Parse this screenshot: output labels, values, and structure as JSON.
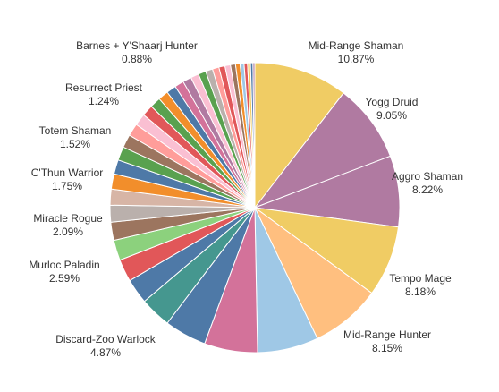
{
  "chart_data": {
    "type": "pie",
    "title": "",
    "slices": [
      {
        "label": "Mid-Range Shaman",
        "value": 10.87,
        "color": "#f0cc64",
        "labeled": true
      },
      {
        "label": "Yogg Druid",
        "value": 9.05,
        "color": "#b07aa1",
        "labeled": true
      },
      {
        "label": "Aggro Shaman",
        "value": 8.22,
        "color": "#b07aa1",
        "labeled": true
      },
      {
        "label": "Tempo Mage",
        "value": 8.18,
        "color": "#f0cc64",
        "labeled": true
      },
      {
        "label": "Mid-Range Hunter",
        "value": 8.15,
        "color": "#ffbf7f",
        "labeled": true
      },
      {
        "label": "",
        "value": 7.05,
        "color": "#9fc8e6",
        "labeled": false
      },
      {
        "label": "",
        "value": 6.15,
        "color": "#d3729a",
        "labeled": false
      },
      {
        "label": "Discard-Zoo Warlock",
        "value": 4.87,
        "color": "#4e79a7",
        "labeled": true
      },
      {
        "label": "",
        "value": 3.6,
        "color": "#45978f",
        "labeled": false
      },
      {
        "label": "",
        "value": 2.9,
        "color": "#4e79a7",
        "labeled": false
      },
      {
        "label": "Murloc Paladin",
        "value": 2.59,
        "color": "#e15759",
        "labeled": true
      },
      {
        "label": "",
        "value": 2.35,
        "color": "#8cd17d",
        "labeled": false
      },
      {
        "label": "Miracle Rogue",
        "value": 2.09,
        "color": "#9c755f",
        "labeled": true
      },
      {
        "label": "",
        "value": 1.95,
        "color": "#bab0ac",
        "labeled": false
      },
      {
        "label": "",
        "value": 1.85,
        "color": "#d7b5a6",
        "labeled": false
      },
      {
        "label": "C'Thun Warrior",
        "value": 1.75,
        "color": "#f28e2b",
        "labeled": true
      },
      {
        "label": "",
        "value": 1.65,
        "color": "#4e79a7",
        "labeled": false
      },
      {
        "label": "",
        "value": 1.58,
        "color": "#59a14f",
        "labeled": false
      },
      {
        "label": "Totem Shaman",
        "value": 1.52,
        "color": "#9c755f",
        "labeled": true
      },
      {
        "label": "",
        "value": 1.45,
        "color": "#ff9d9a",
        "labeled": false
      },
      {
        "label": "",
        "value": 1.38,
        "color": "#fabfd2",
        "labeled": false
      },
      {
        "label": "",
        "value": 1.31,
        "color": "#e15759",
        "labeled": false
      },
      {
        "label": "Resurrect Priest",
        "value": 1.24,
        "color": "#59a14f",
        "labeled": true
      },
      {
        "label": "",
        "value": 1.18,
        "color": "#f28e2b",
        "labeled": false
      },
      {
        "label": "",
        "value": 1.12,
        "color": "#4e79a7",
        "labeled": false
      },
      {
        "label": "",
        "value": 1.06,
        "color": "#d3729a",
        "labeled": false
      },
      {
        "label": "",
        "value": 1.0,
        "color": "#b07aa1",
        "labeled": false
      },
      {
        "label": "",
        "value": 0.94,
        "color": "#fabfd2",
        "labeled": false
      },
      {
        "label": "Barnes + Y'Shaarj Hunter",
        "value": 0.88,
        "color": "#59a14f",
        "labeled": true
      },
      {
        "label": "",
        "value": 0.82,
        "color": "#bab0ac",
        "labeled": false
      },
      {
        "label": "",
        "value": 0.76,
        "color": "#ff9d9a",
        "labeled": false
      },
      {
        "label": "",
        "value": 0.7,
        "color": "#e15759",
        "labeled": false
      },
      {
        "label": "",
        "value": 0.64,
        "color": "#fabfd2",
        "labeled": false
      },
      {
        "label": "",
        "value": 0.58,
        "color": "#9c755f",
        "labeled": false
      },
      {
        "label": "",
        "value": 0.52,
        "color": "#f28e2b",
        "labeled": false
      },
      {
        "label": "",
        "value": 0.46,
        "color": "#9fc8e6",
        "labeled": false
      },
      {
        "label": "",
        "value": 0.4,
        "color": "#e15759",
        "labeled": false
      },
      {
        "label": "",
        "value": 0.34,
        "color": "#f0cc64",
        "labeled": false
      },
      {
        "label": "",
        "value": 0.28,
        "color": "#4e79a7",
        "labeled": false
      },
      {
        "label": "",
        "value": 0.22,
        "color": "#b07aa1",
        "labeled": false
      }
    ]
  }
}
